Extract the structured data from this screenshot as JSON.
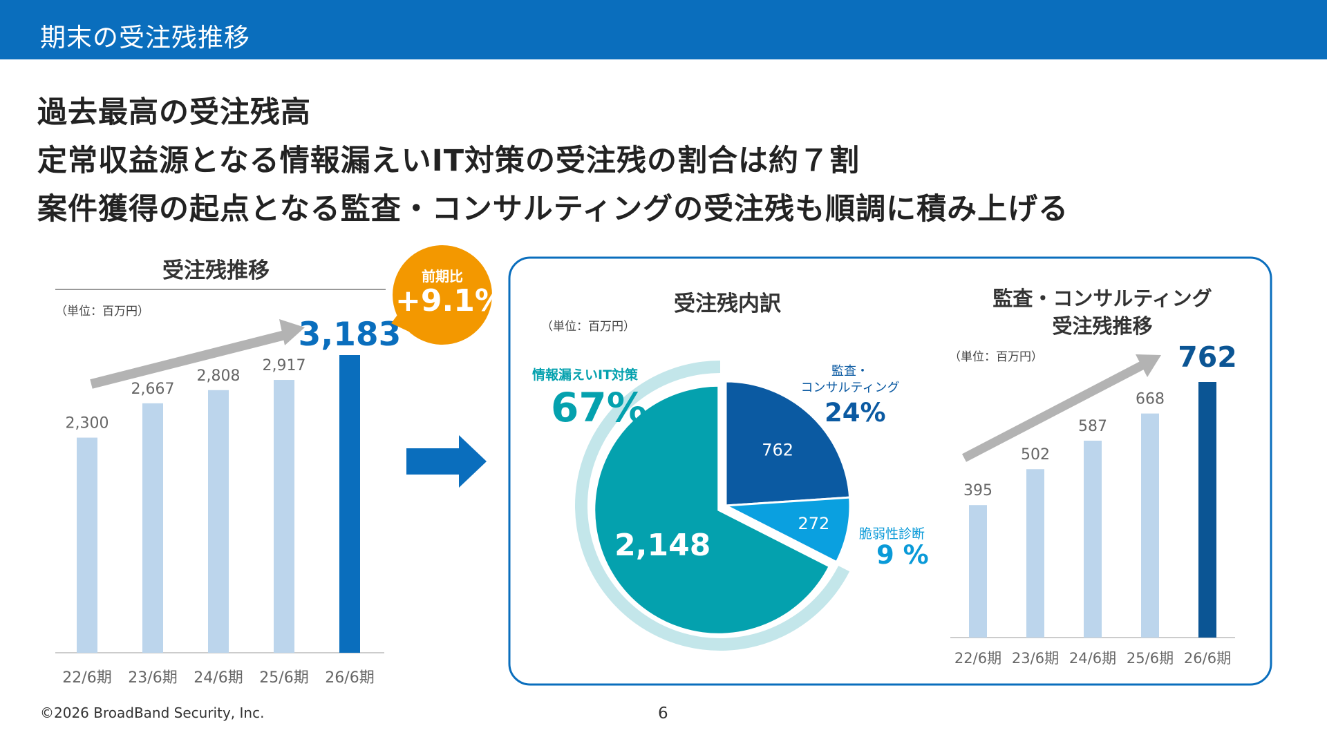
{
  "page": {
    "header_title": "期末の受注残推移",
    "headlines": [
      "過去最高の受注残高",
      "定常収益源となる情報漏えいIT対策の受注残の割合は約７割",
      "案件獲得の起点となる監査・コンサルティングの受注残も順調に積み上げる"
    ],
    "footer": "©2026 BroadBand Security, Inc.",
    "page_number": "6"
  },
  "colors": {
    "header": "#0a6ebd",
    "bar_light": "#bcd5ec",
    "bar_highlight": "#0a6ebd",
    "bar_highlight_dark": "#0b5594",
    "pie_it": "#04a1ae",
    "pie_audit": "#0b5aa2",
    "pie_vuln": "#0aa0e0",
    "ring": "#c3e6ea",
    "badge": "#f39800",
    "arrow_gray": "#b3b3b3"
  },
  "badge": {
    "label": "前期比",
    "value": "+9.1%"
  },
  "chart_data": [
    {
      "type": "bar",
      "title": "受注残推移",
      "unit": "（単位：百万円）",
      "categories": [
        "22/6期",
        "23/6期",
        "24/6期",
        "25/6期",
        "26/6期"
      ],
      "values": [
        2300,
        2667,
        2808,
        2917,
        3183
      ],
      "value_labels": [
        "2,300",
        "2,667",
        "2,808",
        "2,917",
        "3,183"
      ],
      "highlight_index": 4
    },
    {
      "type": "pie",
      "title": "受注残内訳",
      "unit": "（単位：百万円）",
      "slices": [
        {
          "name": "監査・\nコンサルティング",
          "value": 762,
          "value_label": "762",
          "percent": "24%"
        },
        {
          "name": "脆弱性診断",
          "value": 272,
          "value_label": "272",
          "percent": "9 %"
        },
        {
          "name": "情報漏えいIT対策",
          "value": 2148,
          "value_label": "2,148",
          "percent": "67%"
        }
      ]
    },
    {
      "type": "bar",
      "title": "監査・コンサルティング\n受注残推移",
      "unit": "（単位：百万円）",
      "categories": [
        "22/6期",
        "23/6期",
        "24/6期",
        "25/6期",
        "26/6期"
      ],
      "values": [
        395,
        502,
        587,
        668,
        762
      ],
      "value_labels": [
        "395",
        "502",
        "587",
        "668",
        "762"
      ],
      "highlight_index": 4
    }
  ]
}
